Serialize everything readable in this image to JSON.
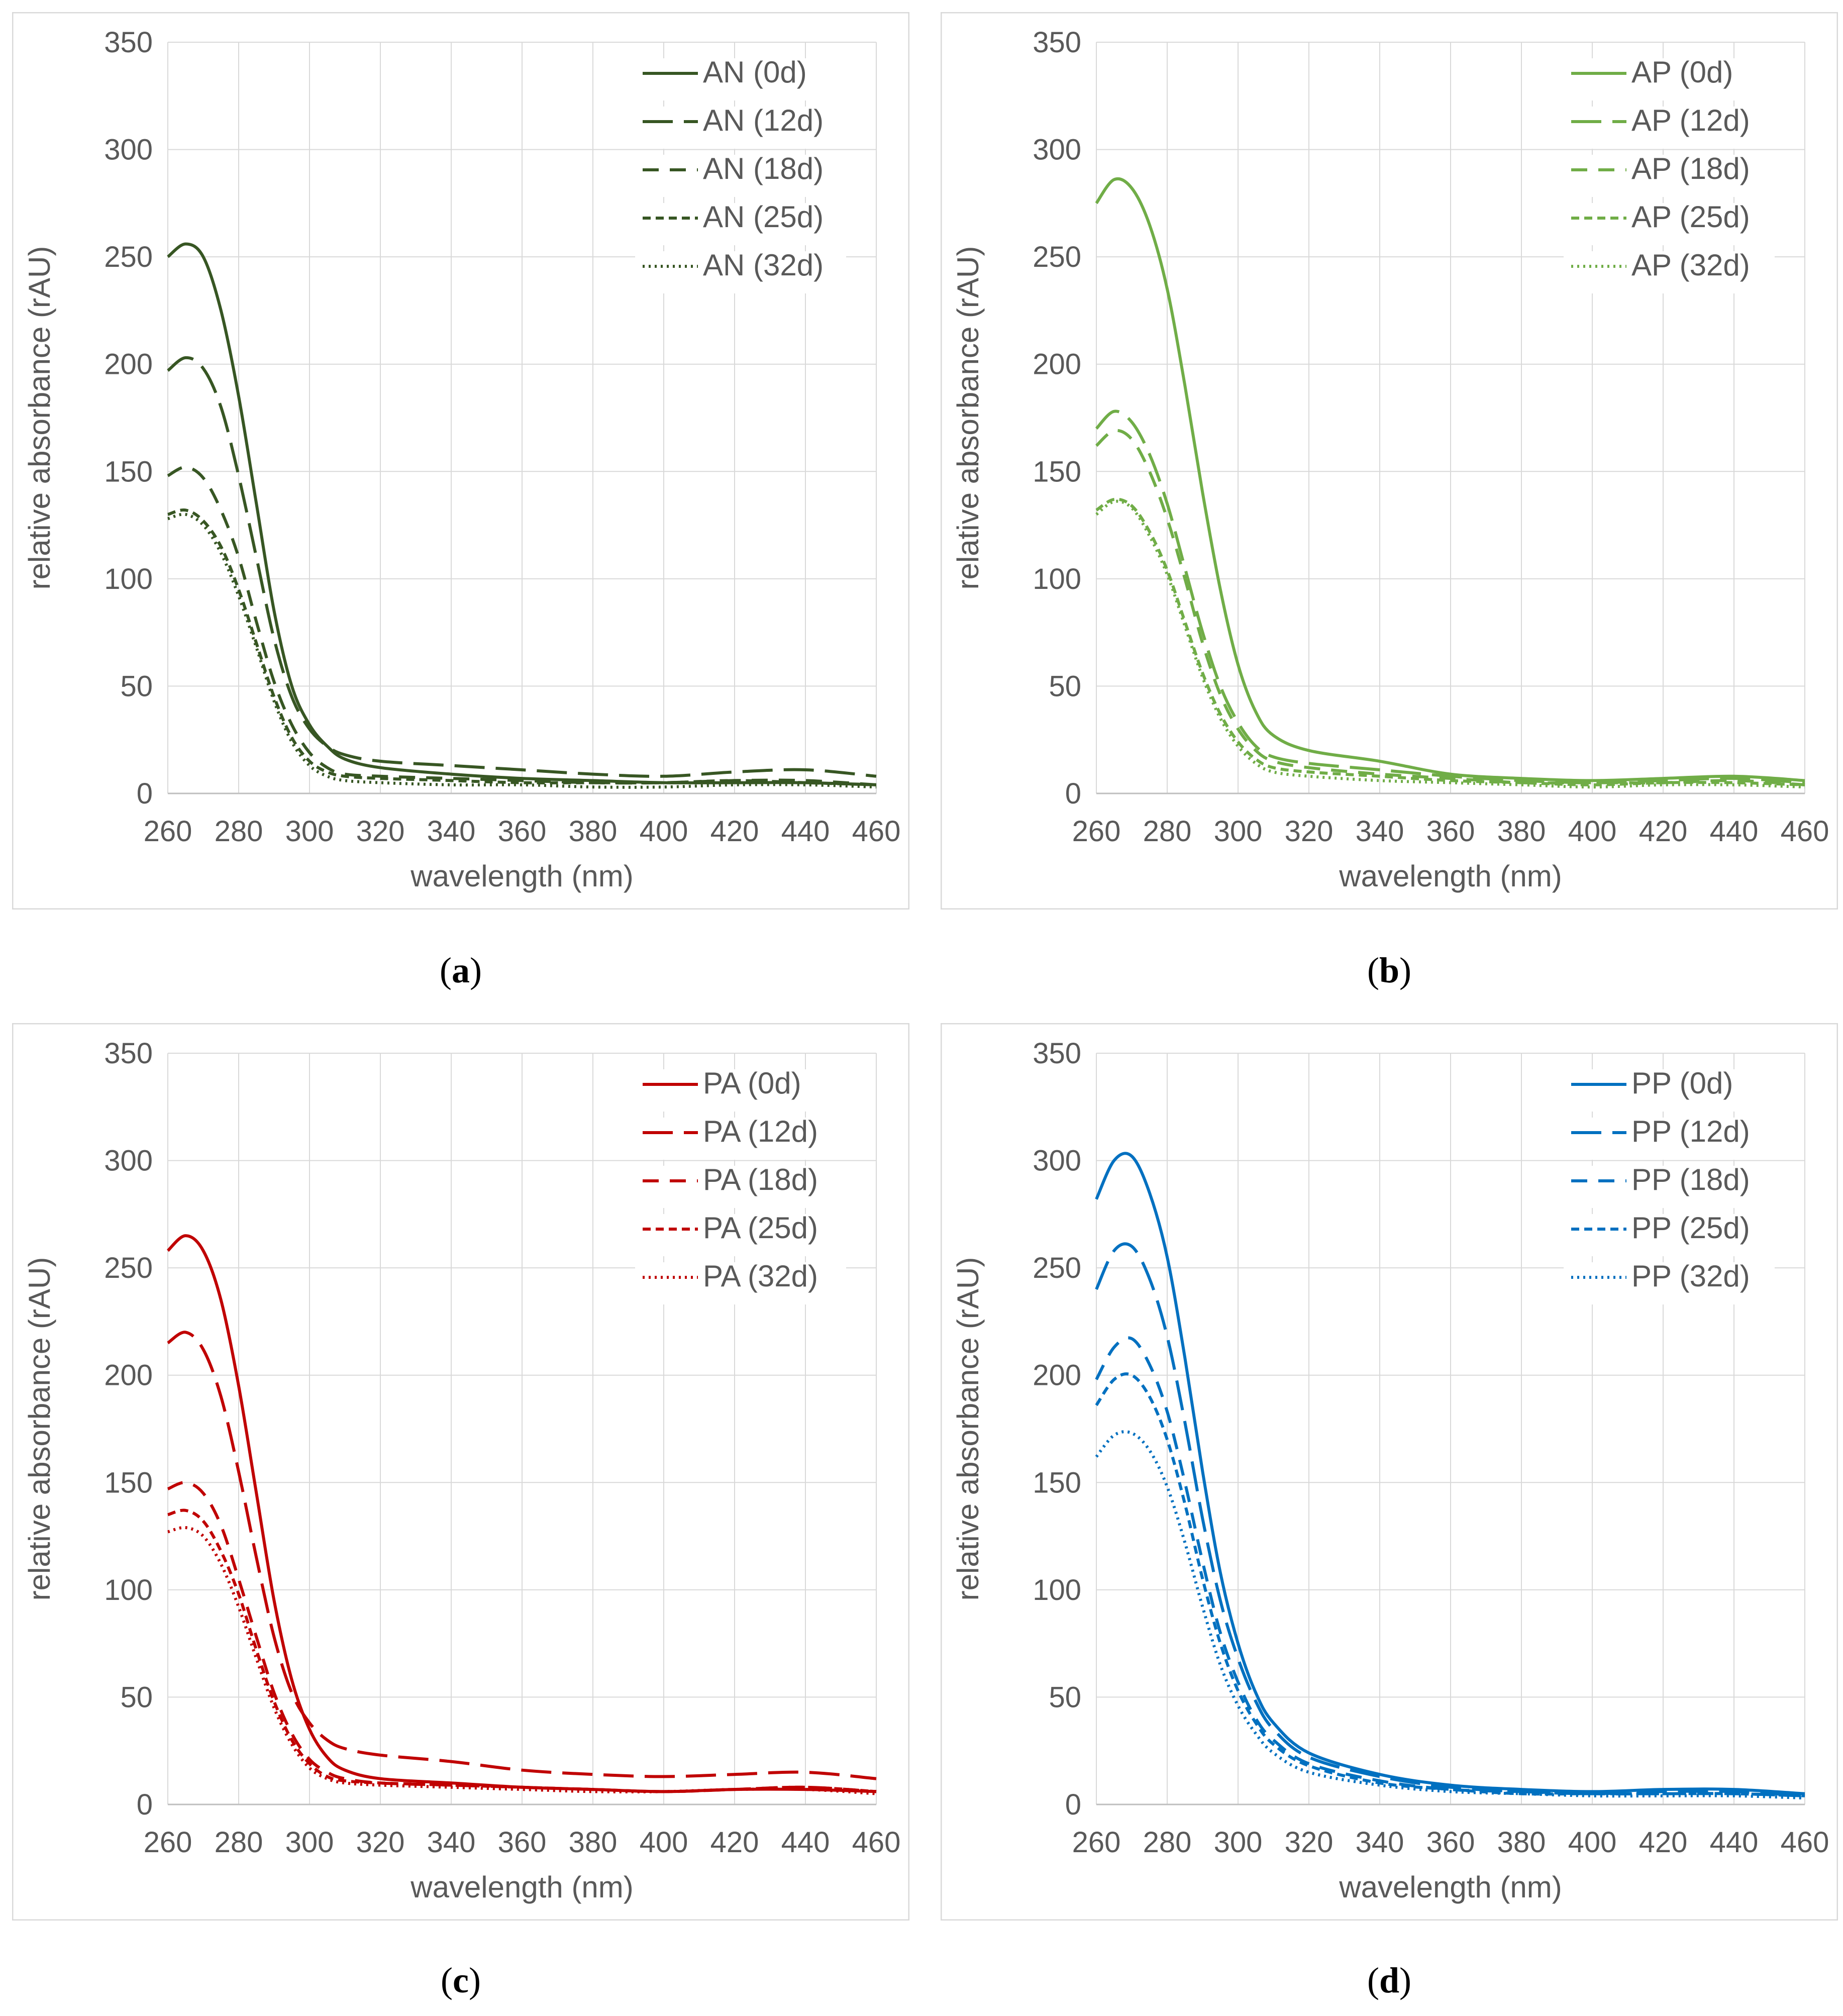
{
  "captions": [
    {
      "open": "(",
      "letter": "a",
      "close": ")"
    },
    {
      "open": "(",
      "letter": "b",
      "close": ")"
    },
    {
      "open": "(",
      "letter": "c",
      "close": ")"
    },
    {
      "open": "(",
      "letter": "d",
      "close": ")"
    }
  ],
  "chart_data": [
    {
      "type": "line",
      "title": "",
      "xlabel": "wavelength (nm)",
      "ylabel": "relative absorbance (rAU)",
      "xlim": [
        260,
        460
      ],
      "ylim": [
        0,
        350
      ],
      "xticks": [
        260,
        280,
        300,
        320,
        340,
        360,
        380,
        400,
        420,
        440,
        460
      ],
      "yticks": [
        0,
        50,
        100,
        150,
        200,
        250,
        300,
        350
      ],
      "grid": true,
      "legend": "top-right",
      "color": "#375623",
      "x": [
        260,
        265,
        270,
        275,
        280,
        285,
        290,
        295,
        300,
        305,
        310,
        320,
        340,
        360,
        380,
        400,
        420,
        440,
        460
      ],
      "series": [
        {
          "name": "AN (0d)",
          "dash": "solid",
          "values": [
            250,
            256,
            250,
            225,
            185,
            135,
            85,
            50,
            32,
            22,
            16,
            12,
            9,
            7,
            6,
            5,
            5,
            5,
            4
          ]
        },
        {
          "name": "AN (12d)",
          "dash": "longdash",
          "values": [
            197,
            203,
            198,
            180,
            148,
            110,
            72,
            45,
            30,
            22,
            18,
            15,
            13,
            11,
            9,
            8,
            10,
            11,
            8
          ]
        },
        {
          "name": "AN (18d)",
          "dash": "dash",
          "values": [
            148,
            152,
            147,
            132,
            110,
            80,
            52,
            32,
            19,
            12,
            9,
            8,
            7,
            6,
            5,
            5,
            6,
            6,
            4
          ]
        },
        {
          "name": "AN (25d)",
          "dash": "shortdash",
          "values": [
            130,
            132,
            127,
            115,
            95,
            70,
            45,
            26,
            15,
            10,
            8,
            7,
            6,
            5,
            5,
            5,
            6,
            5,
            4
          ]
        },
        {
          "name": "AN (32d)",
          "dash": "dot",
          "values": [
            128,
            130,
            125,
            112,
            92,
            68,
            43,
            24,
            13,
            8,
            6,
            5,
            4,
            4,
            3,
            3,
            4,
            4,
            3
          ]
        }
      ]
    },
    {
      "type": "line",
      "title": "",
      "xlabel": "wavelength (nm)",
      "ylabel": "relative absorbance (rAU)",
      "xlim": [
        260,
        460
      ],
      "ylim": [
        0,
        350
      ],
      "xticks": [
        260,
        280,
        300,
        320,
        340,
        360,
        380,
        400,
        420,
        440,
        460
      ],
      "yticks": [
        0,
        50,
        100,
        150,
        200,
        250,
        300,
        350
      ],
      "grid": true,
      "legend": "top-right",
      "color": "#70AD47",
      "x": [
        260,
        265,
        270,
        275,
        280,
        285,
        290,
        295,
        300,
        305,
        310,
        320,
        340,
        360,
        380,
        400,
        420,
        440,
        460
      ],
      "series": [
        {
          "name": "AP (0d)",
          "dash": "solid",
          "values": [
            275,
            286,
            282,
            265,
            235,
            190,
            140,
            95,
            60,
            38,
            27,
            20,
            15,
            9,
            7,
            6,
            7,
            8,
            6
          ]
        },
        {
          "name": "AP (12d)",
          "dash": "longdash",
          "values": [
            170,
            178,
            173,
            158,
            135,
            105,
            75,
            50,
            33,
            22,
            17,
            14,
            11,
            8,
            6,
            5,
            6,
            7,
            5
          ]
        },
        {
          "name": "AP (18d)",
          "dash": "dash",
          "values": [
            162,
            169,
            165,
            150,
            128,
            100,
            70,
            46,
            30,
            20,
            15,
            12,
            9,
            7,
            5,
            5,
            5,
            6,
            4
          ]
        },
        {
          "name": "AP (25d)",
          "dash": "shortdash",
          "values": [
            132,
            137,
            134,
            122,
            104,
            80,
            56,
            37,
            24,
            16,
            12,
            10,
            8,
            6,
            5,
            4,
            5,
            5,
            4
          ]
        },
        {
          "name": "AP (32d)",
          "dash": "dot",
          "values": [
            130,
            136,
            133,
            120,
            102,
            78,
            54,
            35,
            22,
            14,
            10,
            8,
            6,
            5,
            4,
            3,
            4,
            4,
            3
          ]
        }
      ]
    },
    {
      "type": "line",
      "title": "",
      "xlabel": "wavelength (nm)",
      "ylabel": "relative absorbance (rAU)",
      "xlim": [
        260,
        460
      ],
      "ylim": [
        0,
        350
      ],
      "xticks": [
        260,
        280,
        300,
        320,
        340,
        360,
        380,
        400,
        420,
        440,
        460
      ],
      "yticks": [
        0,
        50,
        100,
        150,
        200,
        250,
        300,
        350
      ],
      "grid": true,
      "legend": "top-right",
      "color": "#C00000",
      "x": [
        260,
        265,
        270,
        275,
        280,
        285,
        290,
        295,
        300,
        305,
        310,
        320,
        340,
        360,
        380,
        400,
        420,
        440,
        460
      ],
      "series": [
        {
          "name": "PA (0d)",
          "dash": "solid",
          "values": [
            258,
            265,
            258,
            235,
            195,
            145,
            95,
            58,
            35,
            22,
            16,
            12,
            10,
            8,
            7,
            6,
            7,
            7,
            6
          ]
        },
        {
          "name": "PA (12d)",
          "dash": "longdash",
          "values": [
            215,
            220,
            212,
            190,
            155,
            115,
            78,
            52,
            38,
            30,
            26,
            23,
            20,
            16,
            14,
            13,
            14,
            15,
            12
          ]
        },
        {
          "name": "PA (18d)",
          "dash": "dash",
          "values": [
            147,
            150,
            145,
            130,
            105,
            78,
            52,
            33,
            21,
            15,
            12,
            10,
            9,
            8,
            7,
            6,
            7,
            8,
            6
          ]
        },
        {
          "name": "PA (25d)",
          "dash": "shortdash",
          "values": [
            135,
            137,
            132,
            118,
            98,
            72,
            48,
            30,
            19,
            13,
            11,
            10,
            9,
            8,
            7,
            6,
            7,
            8,
            6
          ]
        },
        {
          "name": "PA (32d)",
          "dash": "dot",
          "values": [
            127,
            129,
            125,
            112,
            92,
            68,
            45,
            28,
            17,
            12,
            10,
            9,
            8,
            7,
            6,
            6,
            7,
            7,
            5
          ]
        }
      ]
    },
    {
      "type": "line",
      "title": "",
      "xlabel": "wavelength (nm)",
      "ylabel": "relative absorbance (rAU)",
      "xlim": [
        260,
        460
      ],
      "ylim": [
        0,
        350
      ],
      "xticks": [
        260,
        280,
        300,
        320,
        340,
        360,
        380,
        400,
        420,
        440,
        460
      ],
      "yticks": [
        0,
        50,
        100,
        150,
        200,
        250,
        300,
        350
      ],
      "grid": true,
      "legend": "top-right",
      "color": "#0070C0",
      "x": [
        260,
        265,
        270,
        275,
        280,
        285,
        290,
        295,
        300,
        305,
        310,
        320,
        340,
        360,
        380,
        400,
        420,
        440,
        460
      ],
      "series": [
        {
          "name": "PP (0d)",
          "dash": "solid",
          "values": [
            282,
            300,
            302,
            285,
            255,
            208,
            155,
            108,
            75,
            52,
            38,
            24,
            14,
            9,
            7,
            6,
            7,
            7,
            5
          ]
        },
        {
          "name": "PP (12d)",
          "dash": "longdash",
          "values": [
            240,
            258,
            260,
            245,
            218,
            178,
            133,
            95,
            68,
            48,
            35,
            22,
            13,
            8,
            6,
            5,
            6,
            6,
            4
          ]
        },
        {
          "name": "PP (18d)",
          "dash": "dash",
          "values": [
            198,
            213,
            217,
            205,
            183,
            150,
            113,
            80,
            57,
            40,
            30,
            19,
            11,
            7,
            6,
            5,
            5,
            5,
            4
          ]
        },
        {
          "name": "PP (25d)",
          "dash": "shortdash",
          "values": [
            186,
            198,
            200,
            190,
            170,
            140,
            105,
            75,
            53,
            38,
            28,
            18,
            10,
            7,
            5,
            5,
            5,
            5,
            4
          ]
        },
        {
          "name": "PP (32d)",
          "dash": "dot",
          "values": [
            162,
            172,
            173,
            165,
            148,
            122,
            92,
            65,
            46,
            33,
            24,
            15,
            9,
            6,
            5,
            4,
            4,
            4,
            3
          ]
        }
      ]
    }
  ]
}
